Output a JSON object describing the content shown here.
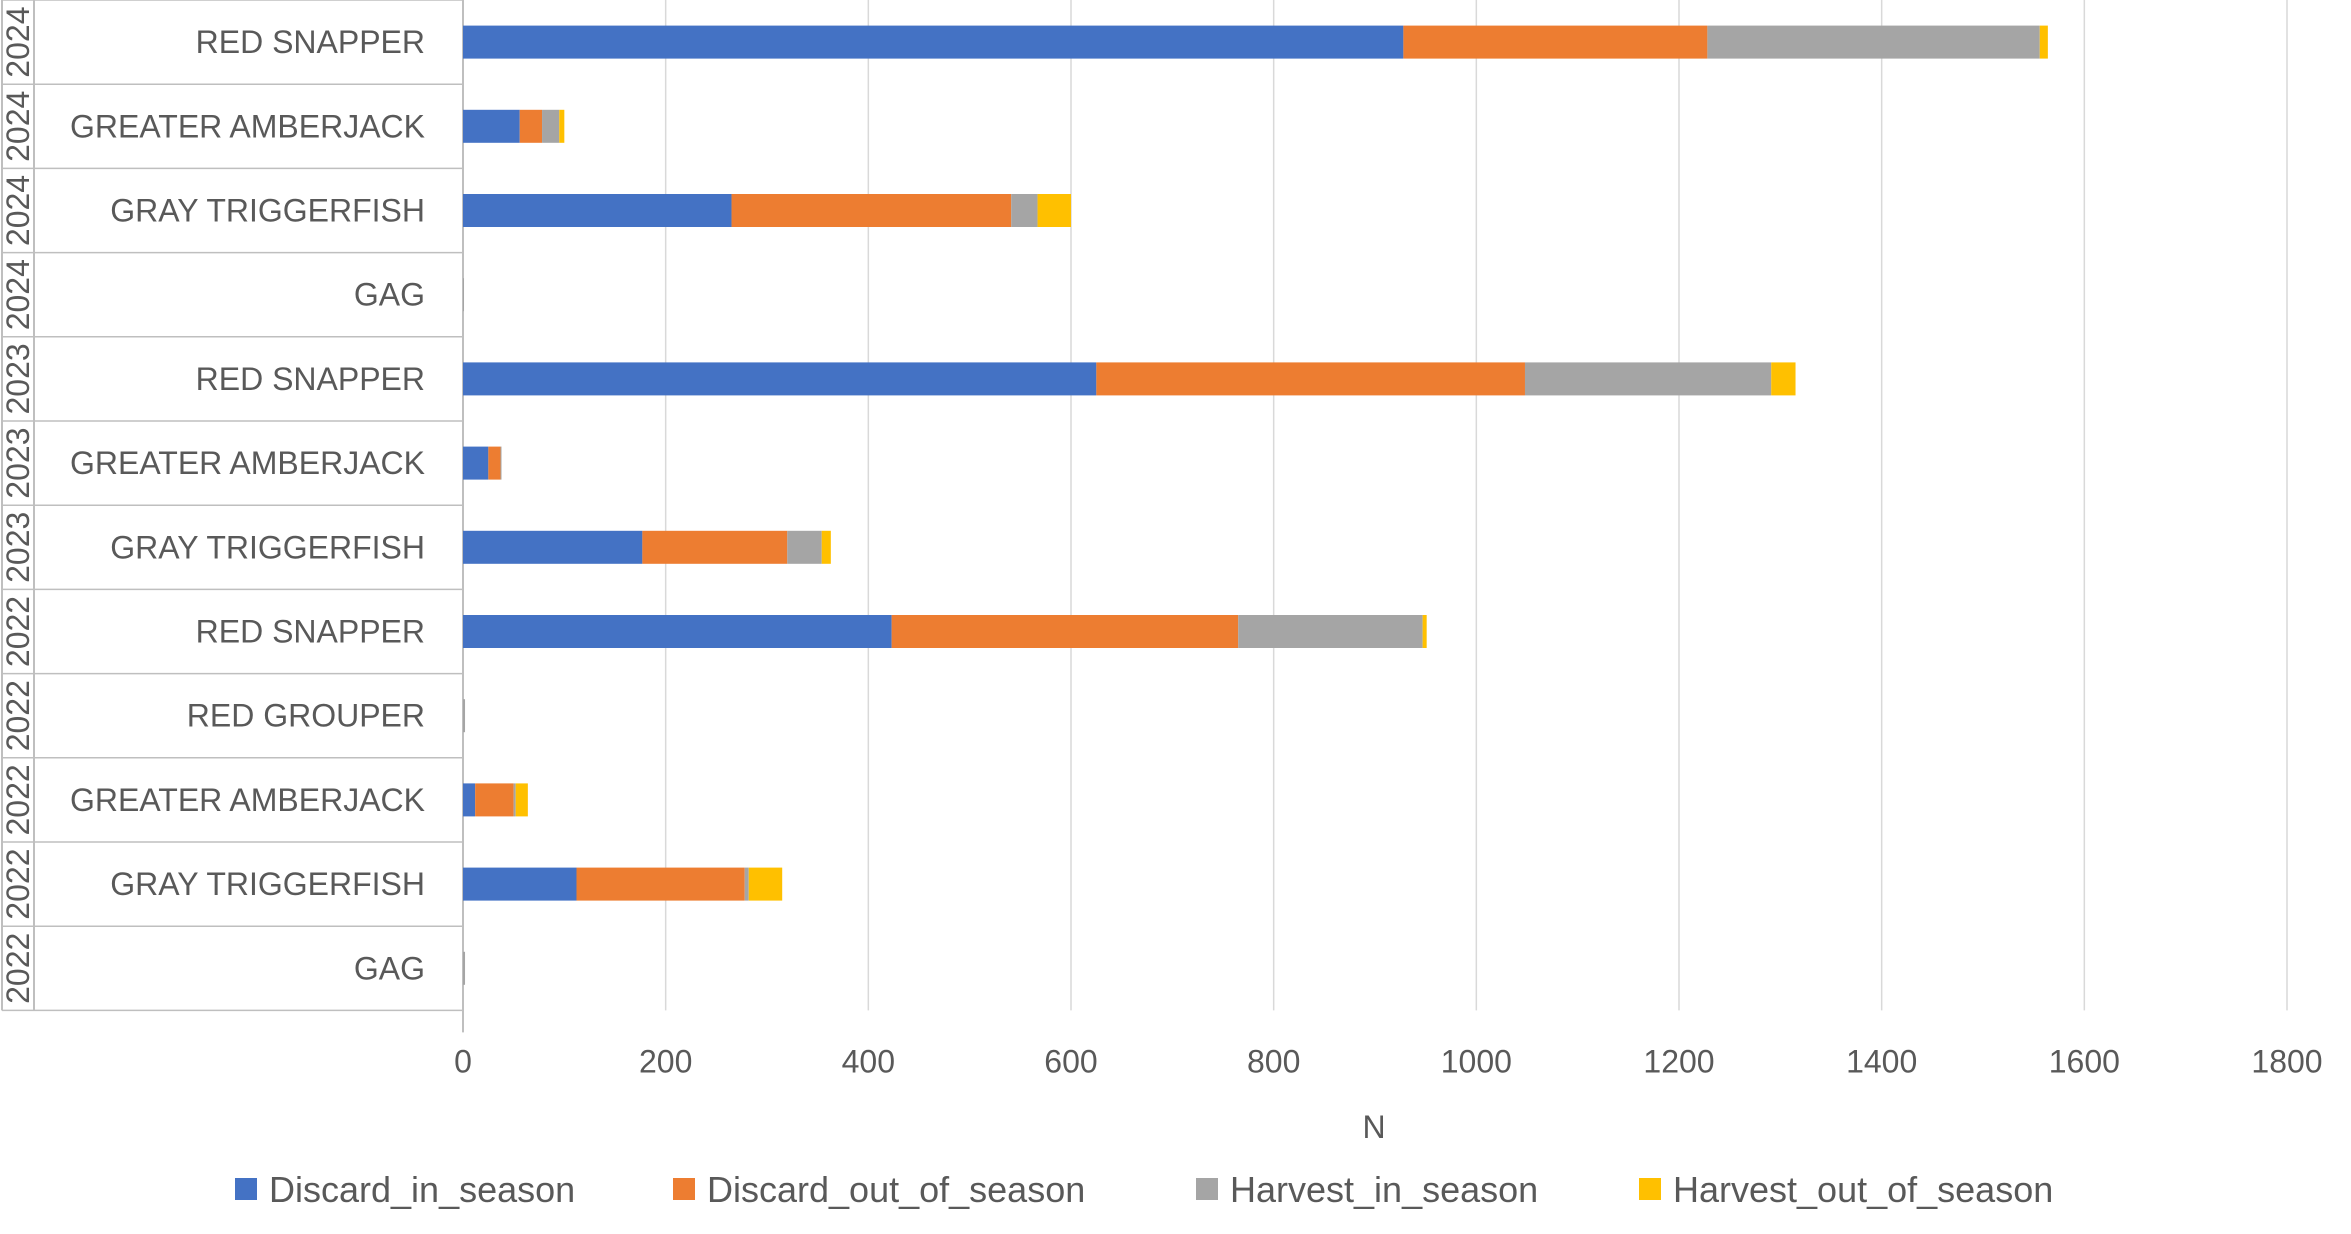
{
  "chart_data": {
    "type": "bar",
    "orientation": "horizontal",
    "stacked": true,
    "title": "",
    "xlabel": "N",
    "ylabel": "",
    "xlim": [
      0,
      1800
    ],
    "xticks": [
      0,
      200,
      400,
      600,
      800,
      1000,
      1200,
      1400,
      1600,
      1800
    ],
    "grid": "vertical",
    "legend_position": "bottom",
    "categories": [
      {
        "year": "2024",
        "species": "RED SNAPPER"
      },
      {
        "year": "2024",
        "species": "GREATER AMBERJACK"
      },
      {
        "year": "2024",
        "species": "GRAY TRIGGERFISH"
      },
      {
        "year": "2024",
        "species": "GAG"
      },
      {
        "year": "2023",
        "species": "RED SNAPPER"
      },
      {
        "year": "2023",
        "species": "GREATER AMBERJACK"
      },
      {
        "year": "2023",
        "species": "GRAY TRIGGERFISH"
      },
      {
        "year": "2022",
        "species": "RED SNAPPER"
      },
      {
        "year": "2022",
        "species": "RED GROUPER"
      },
      {
        "year": "2022",
        "species": "GREATER AMBERJACK"
      },
      {
        "year": "2022",
        "species": "GRAY TRIGGERFISH"
      },
      {
        "year": "2022",
        "species": "GAG"
      }
    ],
    "series": [
      {
        "name": "Discard_in_season",
        "color": "#4472C4",
        "values": [
          928,
          56,
          265,
          0,
          625,
          25,
          177,
          423,
          0,
          12,
          112,
          0
        ]
      },
      {
        "name": "Discard_out_of_season",
        "color": "#ED7D31",
        "values": [
          300,
          22,
          276,
          0,
          423,
          12,
          143,
          342,
          0,
          38,
          166,
          0
        ]
      },
      {
        "name": "Harvest_in_season",
        "color": "#A5A5A5",
        "values": [
          328,
          17,
          26,
          1,
          243,
          1,
          34,
          182,
          2,
          2,
          4,
          2
        ]
      },
      {
        "name": "Harvest_out_of_season",
        "color": "#FFC000",
        "values": [
          8,
          5,
          33,
          0,
          24,
          0,
          9,
          4,
          0,
          12,
          33,
          0
        ]
      }
    ]
  }
}
